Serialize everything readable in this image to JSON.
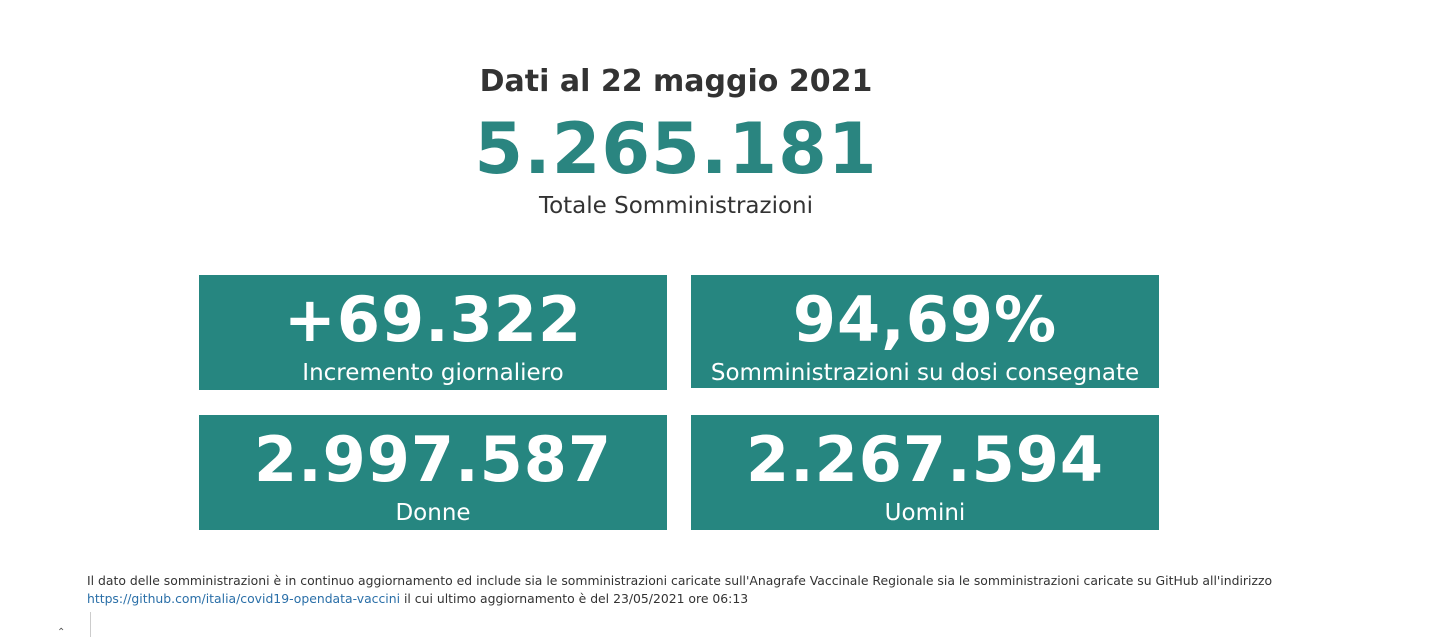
{
  "header": {
    "date_line": "Dati al 22 maggio 2021",
    "total_value": "5.265.181",
    "total_label": "Totale Somministrazioni"
  },
  "cards": [
    {
      "value": "+69.322",
      "label": "Incremento giornaliero"
    },
    {
      "value": "94,69%",
      "label": "Somministrazioni su dosi consegnate"
    },
    {
      "value": "2.997.587",
      "label": "Donne"
    },
    {
      "value": "2.267.594",
      "label": "Uomini"
    }
  ],
  "footnote": {
    "text_before": "Il dato delle somministrazioni è in continuo aggiornamento ed include sia le somministrazioni caricate sull'Anagrafe Vaccinale Regionale sia le somministrazioni caricate su GitHub all'indirizzo",
    "link_text": "https://github.com/italia/covid19-opendata-vaccini",
    "text_after": " il cui ultimo aggiornamento è del 23/05/2021 ore 06:13"
  },
  "colors": {
    "accent": "#268680",
    "text": "#333333",
    "link": "#2a6fa8"
  },
  "icons": [
    "caret-up-icon"
  ]
}
